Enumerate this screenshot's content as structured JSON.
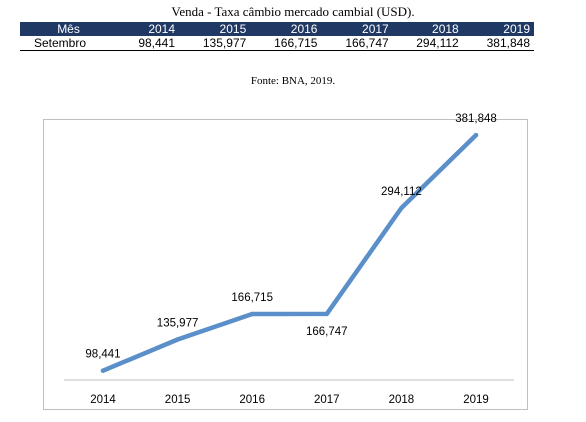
{
  "caption": "Venda - Taxa câmbio mercado cambial (USD).",
  "table": {
    "header": [
      "Mês",
      "2014",
      "2015",
      "2016",
      "2017",
      "2018",
      "2019"
    ],
    "row_label": "Setembro",
    "row_values": [
      "98,441",
      "135,977",
      "166,715",
      "166,747",
      "294,112",
      "381,848"
    ]
  },
  "source": "Fonte: BNA, 2019.",
  "chart_data": {
    "type": "line",
    "categories": [
      "2014",
      "2015",
      "2016",
      "2017",
      "2018",
      "2019"
    ],
    "series": [
      {
        "values": [
          98.441,
          135.977,
          166.715,
          166.747,
          294.112,
          381.848
        ],
        "labels": [
          "98,441",
          "135,977",
          "166,715",
          "166,747",
          "294,112",
          "381,848"
        ],
        "color": "#5b8fc9"
      }
    ],
    "title": "",
    "xlabel": "",
    "ylabel": "",
    "grid": false,
    "legend": "none"
  }
}
